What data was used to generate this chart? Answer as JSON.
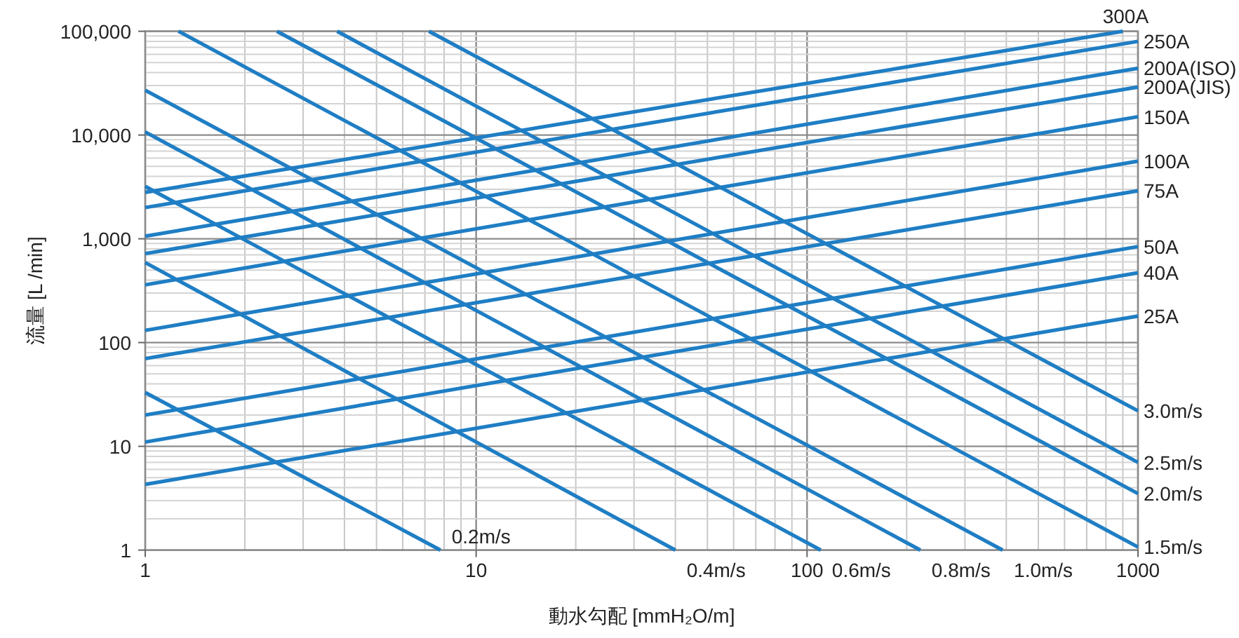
{
  "chart_data": {
    "type": "line",
    "xlabel": "動水勾配 [mmH₂O/m]",
    "ylabel": "流量 [L /min]",
    "log": "xy",
    "grid": true,
    "xlim": [
      1,
      1000
    ],
    "ylim": [
      1,
      100000
    ],
    "xticks": [
      1,
      10,
      100,
      1000
    ],
    "yticks": [
      1,
      10,
      100,
      {
        "value": 1000,
        "label": "1,000"
      },
      {
        "value": 10000,
        "label": "10,000"
      },
      {
        "value": 100000,
        "label": "100,000"
      }
    ],
    "series": [
      {
        "name": "300A",
        "color": "#1f7ec4",
        "x": [
          1,
          900
        ],
        "values": [
          2800,
          100000
        ]
      },
      {
        "name": "250A",
        "color": "#1f7ec4",
        "x": [
          1,
          1000
        ],
        "values": [
          2000,
          80000
        ]
      },
      {
        "name": "200A(ISO)",
        "color": "#1f7ec4",
        "x": [
          1,
          1000
        ],
        "values": [
          1060,
          44000
        ]
      },
      {
        "name": "200A(JIS)",
        "color": "#1f7ec4",
        "x": [
          1,
          1000
        ],
        "values": [
          720,
          29000
        ]
      },
      {
        "name": "150A",
        "color": "#1f7ec4",
        "x": [
          1,
          1000
        ],
        "values": [
          360,
          15000
        ]
      },
      {
        "name": "100A",
        "color": "#1f7ec4",
        "x": [
          1,
          1000
        ],
        "values": [
          131,
          5600
        ]
      },
      {
        "name": "75A",
        "color": "#1f7ec4",
        "x": [
          1,
          1000
        ],
        "values": [
          70,
          2900
        ]
      },
      {
        "name": "50A",
        "color": "#1f7ec4",
        "x": [
          1,
          1000
        ],
        "values": [
          20,
          840
        ]
      },
      {
        "name": "40A",
        "color": "#1f7ec4",
        "x": [
          1,
          1000
        ],
        "values": [
          11,
          470
        ]
      },
      {
        "name": "25A",
        "color": "#1f7ec4",
        "x": [
          1,
          1000
        ],
        "values": [
          4.3,
          180
        ]
      },
      {
        "name": "0.2m/s",
        "color": "#1f7ec4",
        "x": [
          1,
          7.8
        ],
        "values": [
          33,
          1
        ]
      },
      {
        "name": "0.4m/s",
        "color": "#1f7ec4",
        "x": [
          1,
          40
        ],
        "values": [
          590,
          1
        ]
      },
      {
        "name": "0.6m/s",
        "color": "#1f7ec4",
        "x": [
          1,
          110
        ],
        "values": [
          3200,
          1
        ]
      },
      {
        "name": "0.8m/s",
        "color": "#1f7ec4",
        "x": [
          1,
          220
        ],
        "values": [
          10700,
          1
        ]
      },
      {
        "name": "1.0m/s",
        "color": "#1f7ec4",
        "x": [
          1,
          390
        ],
        "values": [
          27000,
          1
        ]
      },
      {
        "name": "1.5m/s",
        "color": "#1f7ec4",
        "x": [
          1.26,
          1000
        ],
        "values": [
          100000,
          1.07
        ]
      },
      {
        "name": "2.0m/s",
        "color": "#1f7ec4",
        "x": [
          2.5,
          1000
        ],
        "values": [
          100000,
          3.5
        ]
      },
      {
        "name": "2.5m/s",
        "color": "#1f7ec4",
        "x": [
          3.8,
          1000
        ],
        "values": [
          100000,
          7
        ]
      },
      {
        "name": "3.0m/s",
        "color": "#1f7ec4",
        "x": [
          7.2,
          1000
        ],
        "values": [
          100000,
          22
        ]
      }
    ]
  }
}
